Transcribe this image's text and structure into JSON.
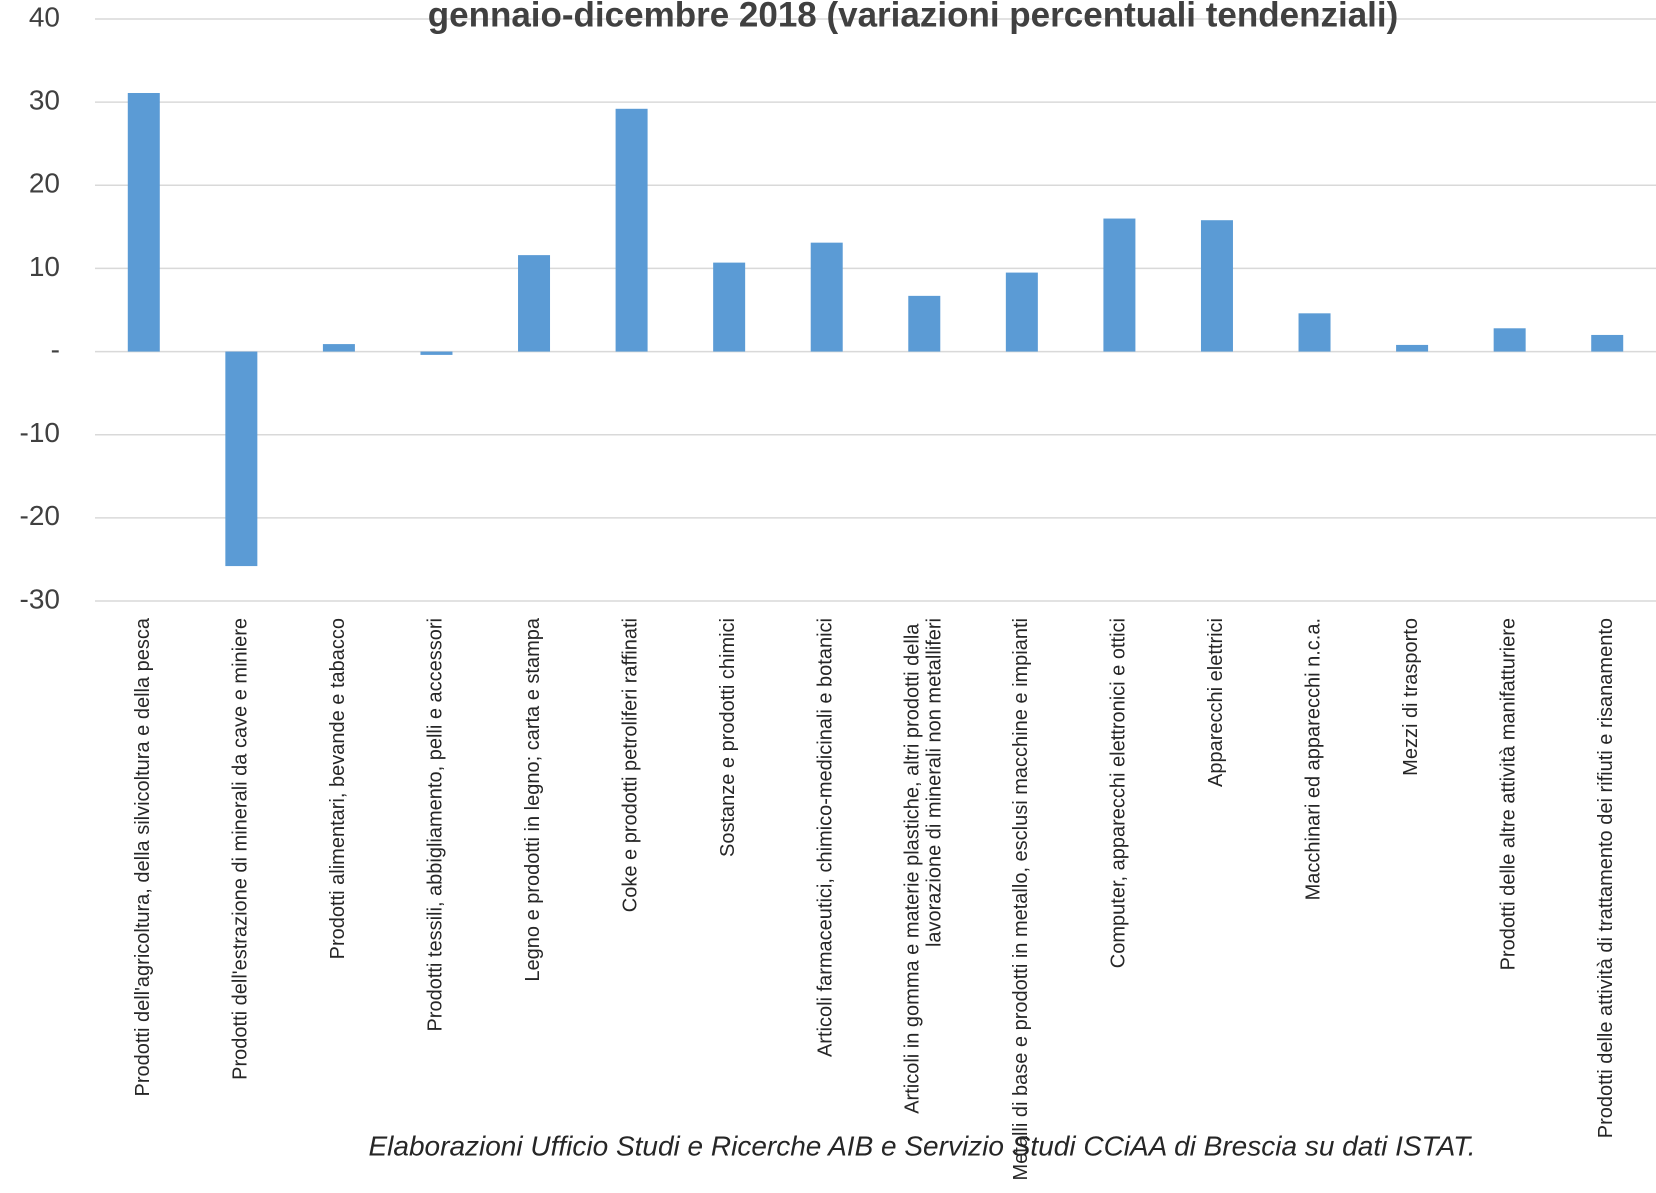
{
  "chart_data": {
    "type": "bar",
    "title": "gennaio-dicembre 2018 (variazioni percentuali tendenziali)",
    "source": "Elaborazioni Ufficio Studi e Ricerche AIB e Servizio Studi CCiAA di Brescia su dati ISTAT.",
    "categories": [
      "Prodotti dell'agricoltura, della silvicoltura e della pesca",
      "Prodotti dell'estrazione di minerali da cave e miniere",
      "Prodotti alimentari, bevande e tabacco",
      "Prodotti tessili, abbigliamento, pelli e accessori",
      "Legno e prodotti in legno; carta e stampa",
      "Coke e prodotti petroliferi raffinati",
      "Sostanze e prodotti chimici",
      "Articoli farmaceutici, chimico-medicinali e botanici",
      "Articoli in gomma e materie plastiche, altri prodotti della lavorazione di minerali non metalliferi",
      "Metalli di base e prodotti in metallo, esclusi macchine e impianti",
      "Computer, apparecchi elettronici e ottici",
      "Apparecchi elettrici",
      "Macchinari ed apparecchi n.c.a.",
      "Mezzi di trasporto",
      "Prodotti delle altre attività manifatturiere",
      "Prodotti delle attività di trattamento dei rifiuti e risanamento"
    ],
    "values": [
      31.1,
      -25.8,
      0.9,
      -0.4,
      11.6,
      29.2,
      10.7,
      13.1,
      6.7,
      9.5,
      16.0,
      15.8,
      4.6,
      0.8,
      2.8,
      2.0
    ],
    "color": "#5b9bd5",
    "ylim": [
      -30,
      40
    ],
    "yticks": [
      -30,
      -20,
      -10,
      {
        "value": 0,
        "label": "-"
      },
      10,
      20,
      30,
      40
    ],
    "grid": true
  }
}
